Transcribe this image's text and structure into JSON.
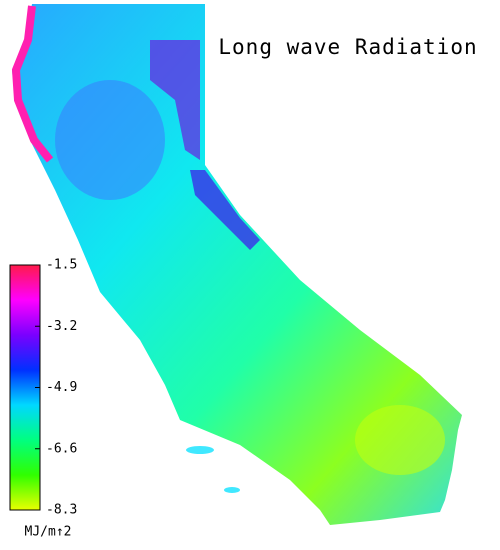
{
  "title": "Long wave Radiation",
  "colorbar": {
    "ticks": [
      -1.5,
      -3.2,
      -4.9,
      -6.6,
      -8.3
    ],
    "range": [
      -1.5,
      -8.3
    ],
    "colors": [
      "#ff1a4a",
      "#ff00ff",
      "#7a00ff",
      "#0030ff",
      "#00d8ff",
      "#00ff80",
      "#30ff00",
      "#e8ff00"
    ],
    "unit": "MJ/m↑2"
  }
}
